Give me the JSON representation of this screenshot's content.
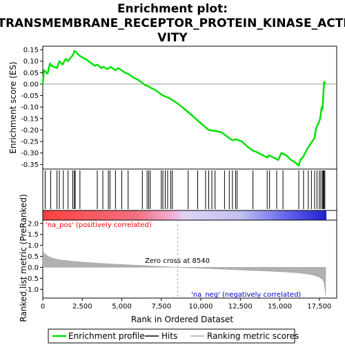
{
  "title_line1": "Enrichment plot:",
  "title_line2": "TRANSMEMBRANE_RECEPTOR_PROTEIN_KINASE_ACTI",
  "title_line3": "VITY",
  "chart_data": [
    {
      "type": "line",
      "name": "Enrichment plot",
      "ylabel": "Enrichment score (ES)",
      "xlim": [
        0,
        18600
      ],
      "ylim": [
        -0.37,
        0.165
      ],
      "yticks": [
        0.15,
        0.1,
        0.05,
        0.0,
        -0.05,
        -0.1,
        -0.15,
        -0.2,
        -0.25,
        -0.3,
        -0.35
      ],
      "ytick_labels": [
        "0.15",
        "0.10",
        "0.05",
        "0.00",
        "-0.05",
        "-0.10",
        "-0.15",
        "-0.20",
        "-0.25",
        "-0.30",
        "-0.35"
      ],
      "series": [
        {
          "name": "Enrichment profile",
          "color": "#00e000",
          "x": [
            0,
            80,
            150,
            300,
            450,
            550,
            900,
            1050,
            1250,
            1450,
            1600,
            1750,
            1900,
            2000,
            2100,
            2300,
            2800,
            3300,
            3450,
            3700,
            3850,
            4100,
            4300,
            4600,
            4750,
            5000,
            5200,
            5400,
            5700,
            6000,
            6300,
            6500,
            6700,
            6800,
            7100,
            7600,
            8000,
            8540,
            9000,
            9500,
            10000,
            10500,
            11000,
            11300,
            11600,
            12000,
            12200,
            12600,
            13000,
            13300,
            13500,
            13800,
            14200,
            14300,
            14600,
            14900,
            15100,
            15400,
            15700,
            15950,
            16200,
            16300,
            16450,
            16600,
            16750,
            16900,
            17050,
            17200,
            17300,
            17450,
            17550,
            17650,
            17700,
            17800,
            17900
          ],
          "y": [
            0.0,
            0.06,
            0.055,
            0.045,
            0.09,
            0.08,
            0.07,
            0.1,
            0.085,
            0.11,
            0.1,
            0.115,
            0.125,
            0.145,
            0.14,
            0.125,
            0.105,
            0.08,
            0.085,
            0.07,
            0.075,
            0.065,
            0.075,
            0.06,
            0.07,
            0.06,
            0.05,
            0.045,
            0.03,
            0.02,
            0.005,
            -0.005,
            -0.01,
            -0.015,
            -0.025,
            -0.05,
            -0.06,
            -0.085,
            -0.11,
            -0.14,
            -0.17,
            -0.2,
            -0.205,
            -0.21,
            -0.225,
            -0.245,
            -0.24,
            -0.25,
            -0.275,
            -0.29,
            -0.295,
            -0.305,
            -0.32,
            -0.31,
            -0.32,
            -0.33,
            -0.3,
            -0.31,
            -0.33,
            -0.34,
            -0.355,
            -0.33,
            -0.32,
            -0.3,
            -0.28,
            -0.265,
            -0.25,
            -0.235,
            -0.19,
            -0.17,
            -0.15,
            -0.1,
            -0.11,
            0.01,
            0.0
          ]
        }
      ],
      "hits": [
        150,
        500,
        900,
        1050,
        1300,
        1600,
        1900,
        2000,
        2050,
        2350,
        3450,
        3800,
        4150,
        4250,
        4600,
        5000,
        5400,
        6300,
        6600,
        6700,
        6800,
        7500,
        7600,
        7750,
        7900,
        8100,
        8200,
        9200,
        9800,
        10300,
        10500,
        10700,
        10900,
        11500,
        11800,
        12000,
        12200,
        12300,
        13300,
        14200,
        14350,
        14800,
        15200,
        16200,
        16500,
        16800,
        17000,
        17200,
        17350,
        17500,
        17600,
        17700,
        17750,
        17800,
        17850
      ]
    },
    {
      "type": "area",
      "name": "Ranked list metric",
      "xlabel": "Rank in Ordered Dataset",
      "ylabel": "Ranked list metric (PreRanked)",
      "xlim": [
        0,
        18600
      ],
      "ylim": [
        -1.4,
        2.15
      ],
      "yticks": [
        2.0,
        1.5,
        1.0,
        0.5,
        0.0,
        -0.5,
        -1.0
      ],
      "ytick_labels": [
        "2.0",
        "1.5",
        "1.0",
        "0.5",
        "0.0",
        "-0.5",
        "-1.0"
      ],
      "xticks": [
        0,
        2500,
        5000,
        7500,
        10000,
        12500,
        15000,
        17500
      ],
      "xtick_labels": [
        "0",
        "2,500",
        "5,000",
        "7,500",
        "10,000",
        "12,500",
        "15,000",
        "17,500"
      ],
      "x": [
        0,
        50,
        150,
        300,
        500,
        800,
        1200,
        1800,
        2500,
        3500,
        4500,
        5500,
        6500,
        7500,
        8540,
        9500,
        10500,
        11500,
        12500,
        13500,
        14500,
        15500,
        16200,
        16800,
        17200,
        17500,
        17700,
        17800,
        17850,
        17900
      ],
      "values": [
        1.0,
        0.7,
        0.6,
        0.52,
        0.45,
        0.38,
        0.33,
        0.28,
        0.24,
        0.19,
        0.15,
        0.11,
        0.08,
        0.04,
        0.0,
        -0.03,
        -0.06,
        -0.09,
        -0.12,
        -0.15,
        -0.18,
        -0.22,
        -0.26,
        -0.31,
        -0.37,
        -0.45,
        -0.55,
        -0.7,
        -0.95,
        -1.3
      ],
      "zero_cross": 8540,
      "annotations": [
        "'na_pos' (positively correlated)",
        "Zero cross at 8540",
        "'na_neg' (negatively correlated)"
      ],
      "annotation_colors": [
        "#ff0000",
        "#000000",
        "#0000c0"
      ]
    }
  ],
  "legend": {
    "items": [
      {
        "label": "Enrichment profile",
        "color": "#00e000"
      },
      {
        "label": "Hits",
        "color": "#000000"
      },
      {
        "label": "Ranking metric scores",
        "color": "#aaaaaa"
      }
    ]
  }
}
